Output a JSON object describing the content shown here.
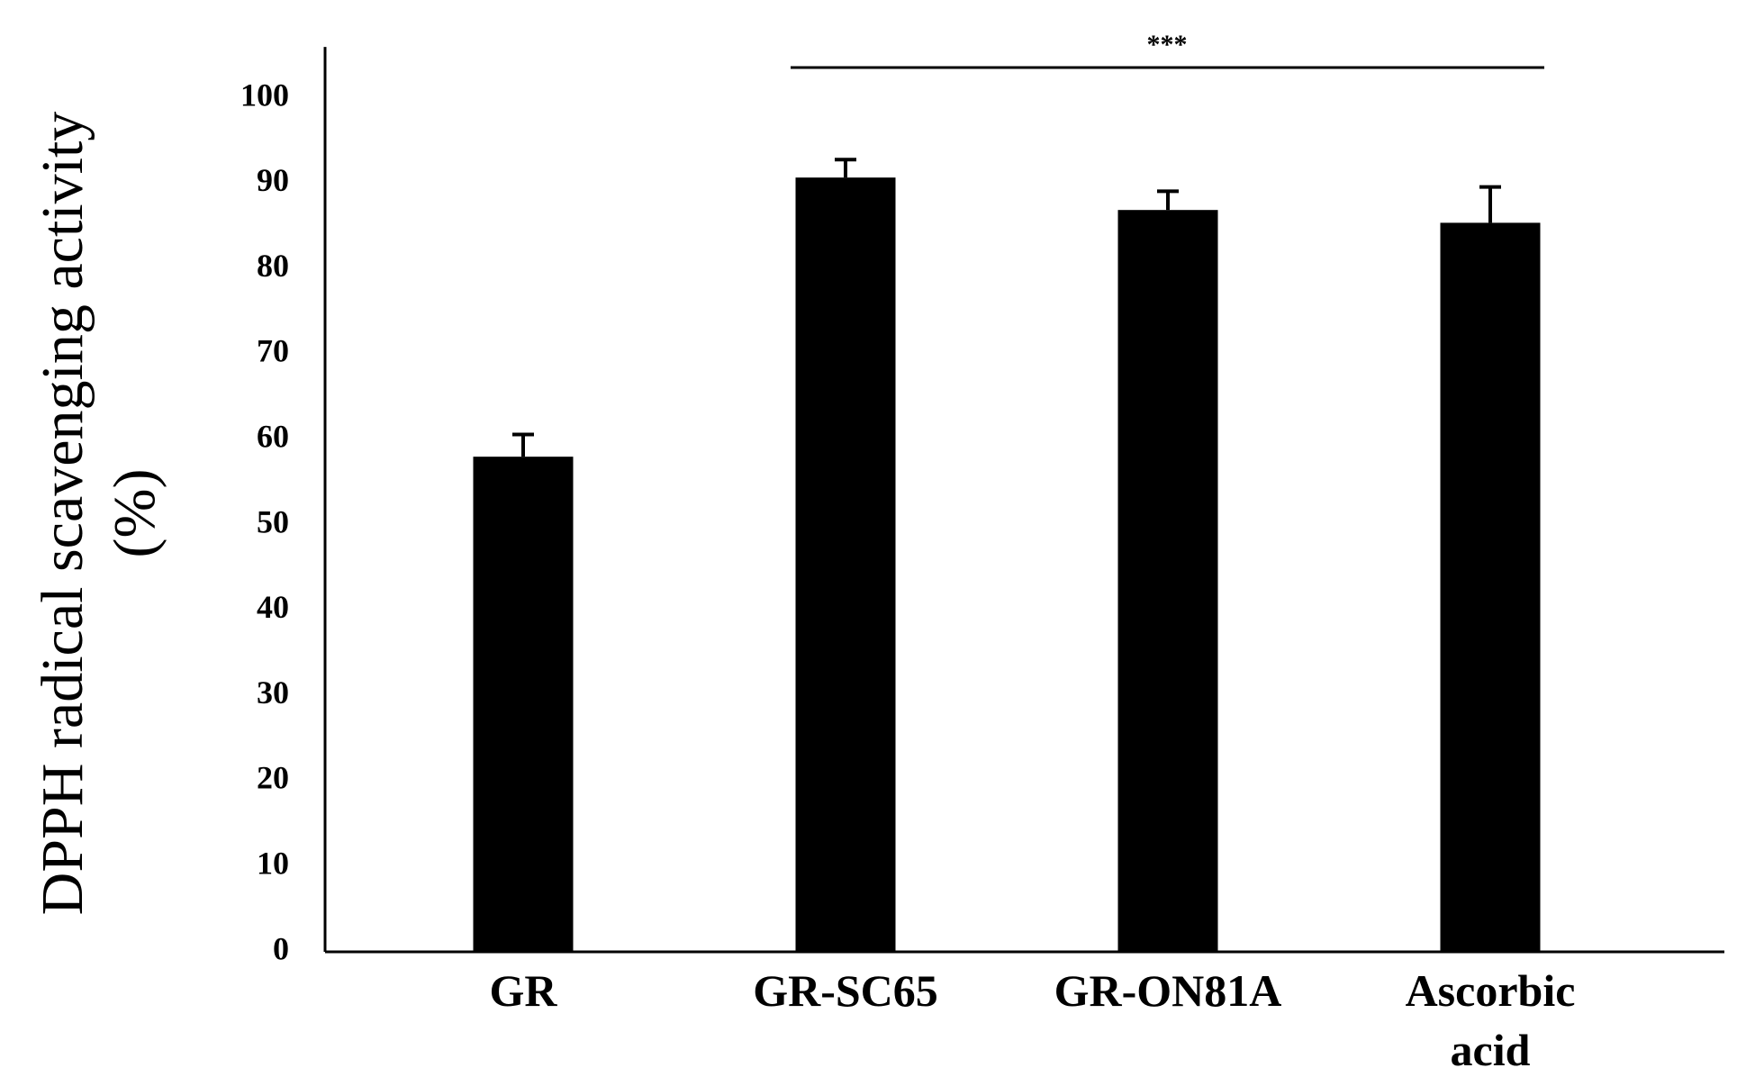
{
  "chart_data": {
    "type": "bar",
    "y_label": "DPPH radical scavenging activity (%)",
    "categories": [
      "GR",
      "GR-SC65",
      "GR-ON81A",
      "Ascorbic acid"
    ],
    "values": [
      58,
      90.7,
      86.9,
      85.4
    ],
    "errors": [
      2.6,
      2.1,
      2.2,
      4.2
    ],
    "color": "#000000",
    "ylim": [
      0,
      106
    ],
    "yticks": [
      0,
      10,
      20,
      30,
      40,
      50,
      60,
      70,
      80,
      90,
      100
    ],
    "grid": false,
    "annotation": "***"
  }
}
